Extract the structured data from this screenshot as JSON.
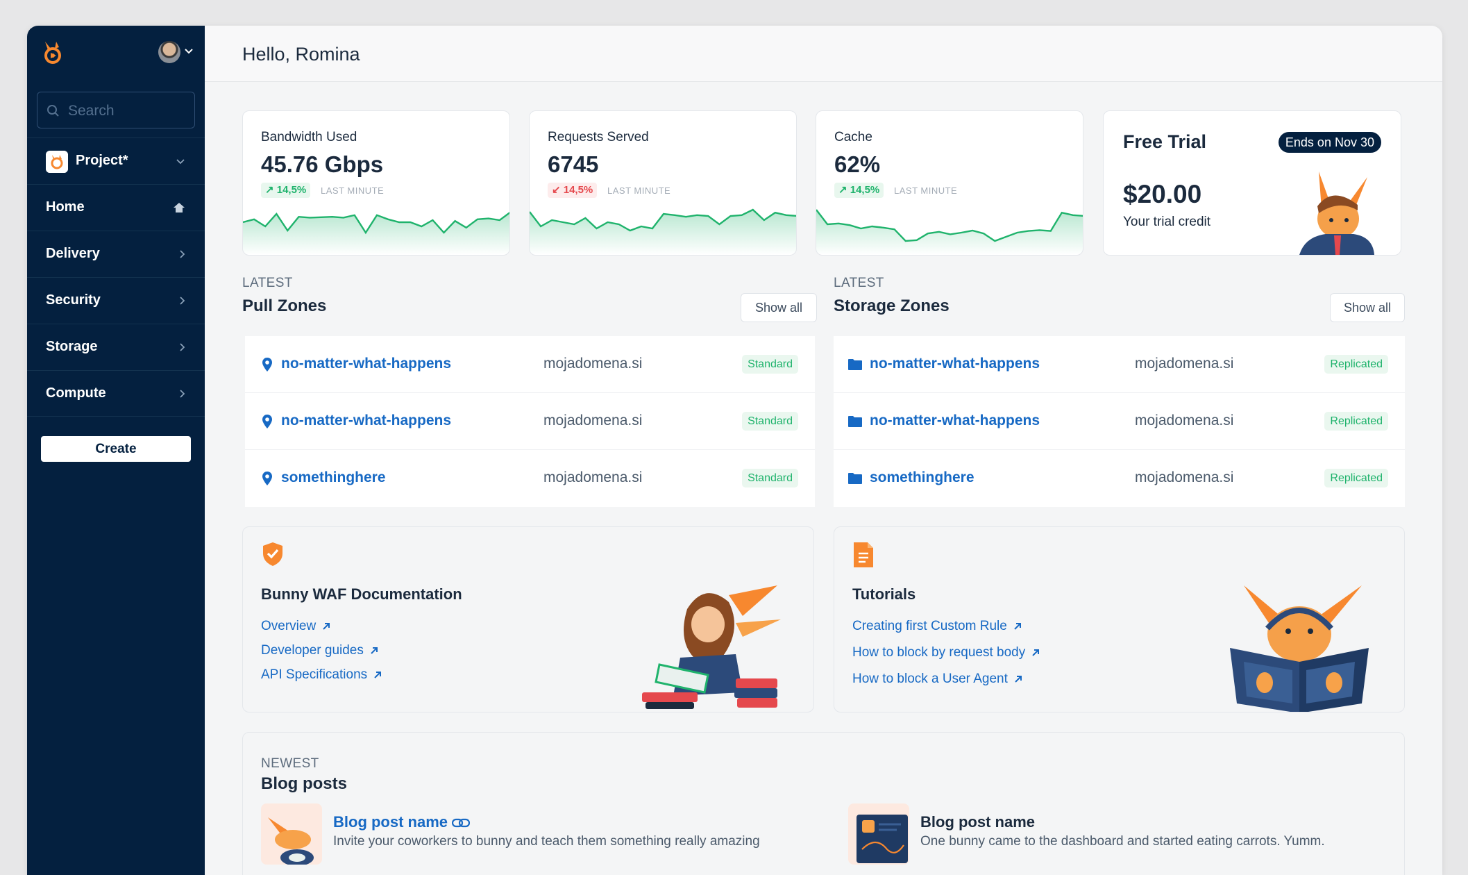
{
  "app": {
    "greeting": "Hello, Romina"
  },
  "sidebar": {
    "search_placeholder": "Search",
    "project": {
      "label": "Project*"
    },
    "items": [
      {
        "label": "Home",
        "icon": "home-icon"
      },
      {
        "label": "Delivery",
        "icon": "chevron-right-icon"
      },
      {
        "label": "Security",
        "icon": "chevron-right-icon"
      },
      {
        "label": "Storage",
        "icon": "chevron-right-icon"
      },
      {
        "label": "Compute",
        "icon": "chevron-right-icon"
      }
    ],
    "create_label": "Create"
  },
  "stats": [
    {
      "title": "Bandwidth Used",
      "value": "45.76 Gbps",
      "change": "↗ 14,5%",
      "direction": "up",
      "period": "LAST MINUTE",
      "spark": [
        0.55,
        0.62,
        0.45,
        0.75,
        0.35,
        0.68,
        0.66,
        0.67,
        0.68,
        0.66,
        0.72,
        0.3,
        0.72,
        0.62,
        0.55,
        0.55,
        0.45,
        0.6,
        0.3,
        0.58,
        0.42,
        0.62,
        0.64,
        0.6,
        0.8
      ]
    },
    {
      "title": "Requests Served",
      "value": "6745",
      "change": "↙ 14,5%",
      "direction": "down",
      "period": "LAST MINUTE",
      "spark": [
        0.8,
        0.45,
        0.6,
        0.55,
        0.5,
        0.65,
        0.4,
        0.55,
        0.5,
        0.35,
        0.45,
        0.4,
        0.75,
        0.72,
        0.68,
        0.72,
        0.7,
        0.5,
        0.7,
        0.72,
        0.85,
        0.6,
        0.78,
        0.72,
        0.7
      ]
    },
    {
      "title": "Cache",
      "value": "62%",
      "change": "↗ 14,5%",
      "direction": "up",
      "period": "LAST MINUTE",
      "spark": [
        0.85,
        0.5,
        0.52,
        0.48,
        0.4,
        0.45,
        0.42,
        0.38,
        0.1,
        0.12,
        0.28,
        0.32,
        0.26,
        0.3,
        0.35,
        0.28,
        0.1,
        0.2,
        0.3,
        0.34,
        0.36,
        0.34,
        0.78,
        0.72,
        0.7
      ]
    }
  ],
  "trial": {
    "title": "Free Trial",
    "badge": "Ends on Nov 30",
    "amount": "$20.00",
    "subtitle": "Your trial credit"
  },
  "pull_zones": {
    "eyebrow": "LATEST",
    "title": "Pull Zones",
    "show_all": "Show all",
    "rows": [
      {
        "name": "no-matter-what-happens",
        "domain": "mojadomena.si",
        "badge": "Standard"
      },
      {
        "name": "no-matter-what-happens",
        "domain": "mojadomena.si",
        "badge": "Standard"
      },
      {
        "name": "somethinghere",
        "domain": "mojadomena.si",
        "badge": "Standard"
      }
    ]
  },
  "storage_zones": {
    "eyebrow": "LATEST",
    "title": "Storage Zones",
    "show_all": "Show all",
    "rows": [
      {
        "name": "no-matter-what-happens",
        "domain": "mojadomena.si",
        "badge": "Replicated"
      },
      {
        "name": "no-matter-what-happens",
        "domain": "mojadomena.si",
        "badge": "Replicated"
      },
      {
        "name": "somethinghere",
        "domain": "mojadomena.si",
        "badge": "Replicated"
      }
    ]
  },
  "waf_docs": {
    "title": "Bunny WAF Documentation",
    "links": [
      "Overview",
      "Developer guides",
      "API Specifications"
    ]
  },
  "tutorials": {
    "title": "Tutorials",
    "links": [
      "Creating first Custom Rule",
      "How to block by request body",
      "How to block a User Agent"
    ]
  },
  "blog": {
    "eyebrow": "NEWEST",
    "title": "Blog posts",
    "posts": [
      {
        "name": "Blog post name",
        "desc": "Invite your coworkers to bunny and teach them something really amazing"
      },
      {
        "name": "Blog post name",
        "desc": "One bunny came to the dashboard and started eating carrots. Yumm."
      }
    ]
  },
  "colors": {
    "sidebar": "#04203f",
    "accent": "#1769c4",
    "success": "#1fb36c",
    "danger": "#e5484d",
    "brand": "#f7882f"
  }
}
